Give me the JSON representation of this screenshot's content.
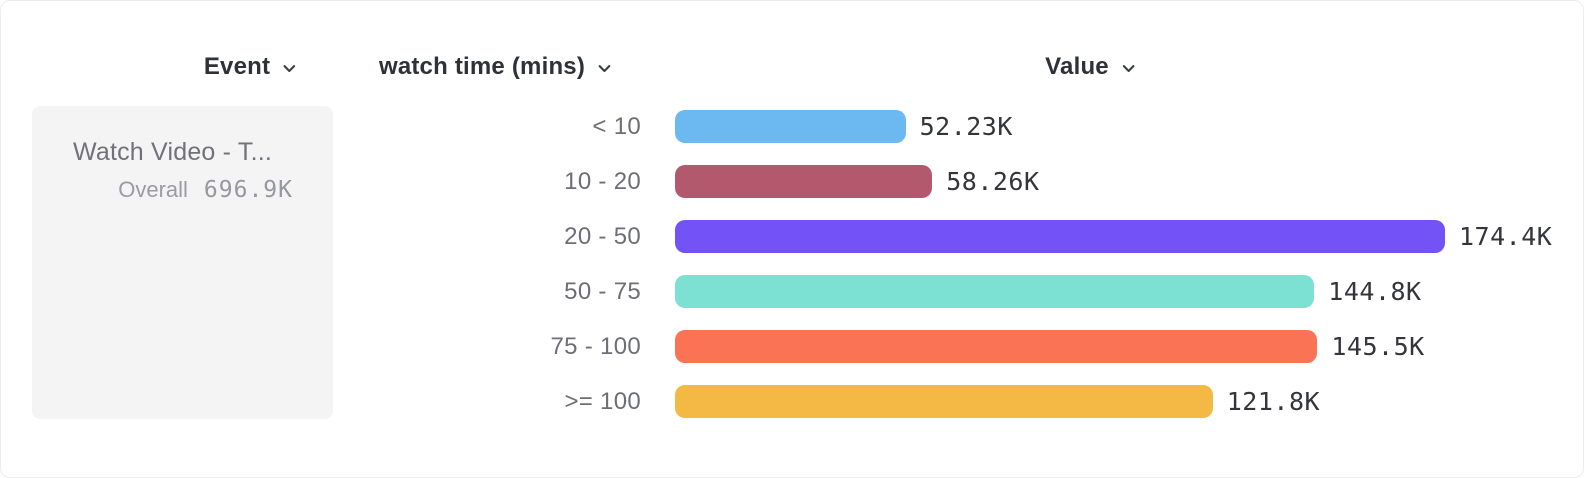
{
  "header": {
    "event_label": "Event",
    "watch_time_label": "watch time (mins)",
    "value_label": "Value"
  },
  "event_card": {
    "title": "Watch Video - T...",
    "overall_label": "Overall",
    "overall_value": "696.9K"
  },
  "chart_data": {
    "type": "bar",
    "orientation": "horizontal",
    "title": "",
    "xlabel": "watch time (mins)",
    "ylabel": "Value",
    "categories": [
      "< 10",
      "10 - 20",
      "20 - 50",
      "50 - 75",
      "75 - 100",
      ">= 100"
    ],
    "values": [
      52.23,
      58.26,
      174.4,
      144.8,
      145.5,
      121.8
    ],
    "value_labels": [
      "52.23K",
      "58.26K",
      "174.4K",
      "144.8K",
      "145.5K",
      "121.8K"
    ],
    "unit": "K",
    "colors": [
      "#6cb9f2",
      "#b2596d",
      "#7353f5",
      "#7ce0d3",
      "#fa7355",
      "#f4b844"
    ],
    "xlim": [
      0,
      174.4
    ],
    "grid": false,
    "legend": false
  },
  "ui_colors": {
    "header_text": "#2f3138",
    "bucket_label": "#6d6e76",
    "value_label": "#34353b",
    "card_bg": "#f4f4f5",
    "card_title": "#717179",
    "card_muted": "#9b9ba1"
  }
}
